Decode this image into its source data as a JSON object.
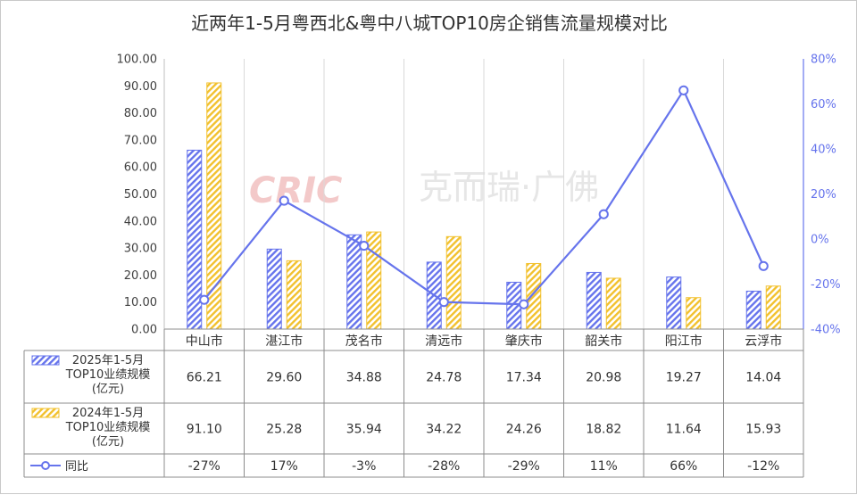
{
  "chart_data": {
    "type": "bar",
    "title": "近两年1-5月粤西北&粤中八城TOP10房企销售流量规模对比",
    "categories": [
      "中山市",
      "湛江市",
      "茂名市",
      "清远市",
      "肇庆市",
      "韶关市",
      "阳江市",
      "云浮市"
    ],
    "series": [
      {
        "name": "2025年1-5月TOP10业绩规模(亿元)",
        "legend_lines": [
          "2025年1-5月",
          "TOP10业绩规模",
          "(亿元)"
        ],
        "kind": "bar",
        "axis": "left",
        "values": [
          66.21,
          29.6,
          34.88,
          24.78,
          17.34,
          20.98,
          19.27,
          14.04
        ],
        "labels": [
          "66.21",
          "29.60",
          "34.88",
          "24.78",
          "17.34",
          "20.98",
          "19.27",
          "14.04"
        ]
      },
      {
        "name": "2024年1-5月TOP10业绩规模(亿元)",
        "legend_lines": [
          "2024年1-5月",
          "TOP10业绩规模",
          "(亿元)"
        ],
        "kind": "bar",
        "axis": "right-none",
        "values": [
          91.1,
          25.28,
          35.94,
          34.22,
          24.26,
          18.82,
          11.64,
          15.93
        ],
        "labels": [
          "91.10",
          "25.28",
          "35.94",
          "34.22",
          "24.26",
          "18.82",
          "11.64",
          "15.93"
        ]
      },
      {
        "name": "同比",
        "legend_lines": [
          "同比"
        ],
        "kind": "line",
        "axis": "right",
        "values": [
          -27,
          17,
          -3,
          -28,
          -29,
          11,
          66,
          -12
        ],
        "labels": [
          "-27%",
          "17%",
          "-3%",
          "-28%",
          "-29%",
          "11%",
          "66%",
          "-12%"
        ]
      }
    ],
    "y_left": {
      "min": 0,
      "max": 100,
      "step": 10,
      "ticks": [
        "0.00",
        "10.00",
        "20.00",
        "30.00",
        "40.00",
        "50.00",
        "60.00",
        "70.00",
        "80.00",
        "90.00",
        "100.00"
      ]
    },
    "y_right": {
      "min": -40,
      "max": 80,
      "step": 20,
      "ticks": [
        "-40%",
        "-20%",
        "0%",
        "20%",
        "40%",
        "60%",
        "80%"
      ]
    },
    "grid": "vertical",
    "legend": "data-table",
    "watermark": {
      "logo": "CRIC",
      "text": "克而瑞·广佛"
    }
  },
  "colors": {
    "bar_2025": "#6674ec",
    "bar_2024": "#f2c12e",
    "line": "#6674ec",
    "axis_right": "#6674ec",
    "grid": "#d9d9d9",
    "text": "#333333"
  }
}
